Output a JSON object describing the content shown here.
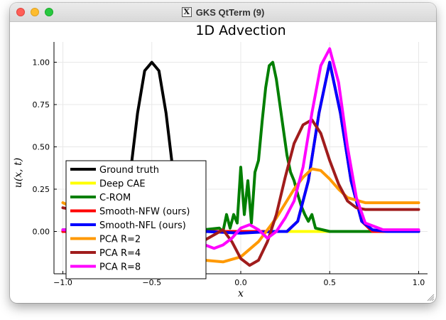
{
  "window": {
    "title": "GKS QtTerm (9)"
  },
  "chart_data": {
    "type": "line",
    "title": "1D Advection",
    "xlabel": "x",
    "ylabel": "u(x, t)",
    "xlim": [
      -1.05,
      1.05
    ],
    "ylim": [
      -0.25,
      1.12
    ],
    "xticks": [
      -1.0,
      -0.5,
      0.0,
      0.5,
      1.0
    ],
    "xtick_labels": [
      "−1.0",
      "−0.5",
      "0.0",
      "0.5",
      "1.0"
    ],
    "yticks": [
      0.0,
      0.25,
      0.5,
      0.75,
      1.0
    ],
    "ytick_labels": [
      "0.00",
      "0.25",
      "0.50",
      "0.75",
      "1.00"
    ],
    "grid": true,
    "legend_position": "bottom-left",
    "series": [
      {
        "name": "Ground truth",
        "color": "#000000",
        "x": [
          -1.0,
          -0.8,
          -0.72,
          -0.66,
          -0.62,
          -0.58,
          -0.54,
          -0.5,
          -0.46,
          -0.42,
          -0.38,
          -0.34,
          -0.28,
          -0.2,
          0.0,
          0.5,
          1.0
        ],
        "y": [
          0,
          0,
          0.0,
          0.1,
          0.35,
          0.7,
          0.95,
          1.0,
          0.95,
          0.7,
          0.35,
          0.1,
          0.0,
          0,
          0,
          0,
          0
        ]
      },
      {
        "name": "Deep CAE",
        "color": "#ffff00",
        "x": [
          -1.0,
          -0.6,
          -0.3,
          0.0,
          0.3,
          0.6,
          1.0
        ],
        "y": [
          0,
          0,
          0,
          0,
          0,
          0,
          0
        ]
      },
      {
        "name": "C-ROM",
        "color": "#007f00",
        "x": [
          -1.0,
          -0.3,
          -0.12,
          -0.1,
          -0.08,
          -0.06,
          -0.04,
          -0.02,
          0.0,
          0.02,
          0.04,
          0.06,
          0.08,
          0.1,
          0.12,
          0.14,
          0.16,
          0.18,
          0.2,
          0.22,
          0.24,
          0.26,
          0.28,
          0.3,
          0.32,
          0.34,
          0.36,
          0.38,
          0.4,
          0.42,
          0.5,
          0.6,
          1.0
        ],
        "y": [
          0.0,
          0.0,
          0.02,
          0.0,
          0.1,
          0.02,
          0.1,
          0.05,
          0.38,
          0.1,
          0.3,
          0.05,
          0.35,
          0.42,
          0.65,
          0.85,
          0.98,
          1.0,
          0.9,
          0.75,
          0.6,
          0.45,
          0.35,
          0.3,
          0.22,
          0.15,
          0.1,
          0.06,
          0.1,
          0.02,
          0.0,
          0.0,
          0.0
        ]
      },
      {
        "name": "Smooth-NFW (ours)",
        "color": "#ff0000",
        "x": [
          -1.0,
          0.0,
          0.18,
          0.26,
          0.32,
          0.38,
          0.44,
          0.5,
          0.56,
          0.62,
          0.68,
          0.74,
          0.82,
          1.0
        ],
        "y": [
          0,
          0,
          0,
          0.0,
          0.06,
          0.3,
          0.7,
          1.0,
          0.7,
          0.3,
          0.06,
          0.0,
          0,
          0
        ]
      },
      {
        "name": "Smooth-NFL (ours)",
        "color": "#0000ff",
        "x": [
          -1.0,
          -0.2,
          0.0,
          0.18,
          0.26,
          0.32,
          0.38,
          0.44,
          0.5,
          0.56,
          0.62,
          0.68,
          0.74,
          0.82,
          1.0
        ],
        "y": [
          0.01,
          0.0,
          -0.01,
          0.0,
          0.0,
          0.06,
          0.3,
          0.7,
          1.0,
          0.7,
          0.3,
          0.06,
          0.01,
          0.0,
          0.0
        ]
      },
      {
        "name": "PCA R=2",
        "color": "#ff9900",
        "x": [
          -1.0,
          -0.9,
          -0.8,
          -0.7,
          -0.6,
          -0.5,
          -0.4,
          -0.3,
          -0.2,
          -0.1,
          0.0,
          0.1,
          0.2,
          0.3,
          0.35,
          0.4,
          0.45,
          0.5,
          0.55,
          0.6,
          0.7,
          0.8,
          0.9,
          1.0
        ],
        "y": [
          0.17,
          0.12,
          0.06,
          0.0,
          -0.05,
          -0.08,
          -0.11,
          -0.14,
          -0.17,
          -0.18,
          -0.15,
          -0.06,
          0.08,
          0.25,
          0.32,
          0.37,
          0.36,
          0.31,
          0.25,
          0.2,
          0.17,
          0.17,
          0.17,
          0.17
        ]
      },
      {
        "name": "PCA R=4",
        "color": "#a01c1c",
        "x": [
          -1.0,
          -0.9,
          -0.8,
          -0.7,
          -0.6,
          -0.5,
          -0.4,
          -0.3,
          -0.2,
          -0.1,
          -0.05,
          0.0,
          0.05,
          0.1,
          0.15,
          0.2,
          0.25,
          0.3,
          0.35,
          0.4,
          0.45,
          0.5,
          0.55,
          0.6,
          0.65,
          0.7,
          0.8,
          0.9,
          1.0
        ],
        "y": [
          0.14,
          0.12,
          0.08,
          0.0,
          -0.06,
          -0.09,
          -0.1,
          -0.1,
          -0.05,
          0.01,
          -0.06,
          -0.16,
          -0.2,
          -0.17,
          -0.06,
          0.1,
          0.32,
          0.52,
          0.63,
          0.66,
          0.58,
          0.42,
          0.28,
          0.18,
          0.14,
          0.13,
          0.13,
          0.13,
          0.13
        ]
      },
      {
        "name": "PCA R=8",
        "color": "#ff00ff",
        "x": [
          -1.0,
          -0.8,
          -0.6,
          -0.5,
          -0.4,
          -0.3,
          -0.2,
          -0.15,
          -0.1,
          -0.05,
          0.0,
          0.05,
          0.1,
          0.15,
          0.2,
          0.25,
          0.3,
          0.35,
          0.4,
          0.45,
          0.5,
          0.55,
          0.6,
          0.65,
          0.7,
          0.8,
          0.9,
          1.0
        ],
        "y": [
          0.01,
          0.0,
          -0.02,
          -0.04,
          -0.04,
          -0.02,
          -0.08,
          -0.1,
          -0.08,
          -0.04,
          0.02,
          0.04,
          0.01,
          -0.04,
          0.0,
          0.08,
          0.18,
          0.38,
          0.7,
          0.98,
          1.08,
          0.88,
          0.5,
          0.2,
          0.05,
          0.01,
          0.01,
          0.01
        ]
      }
    ]
  }
}
